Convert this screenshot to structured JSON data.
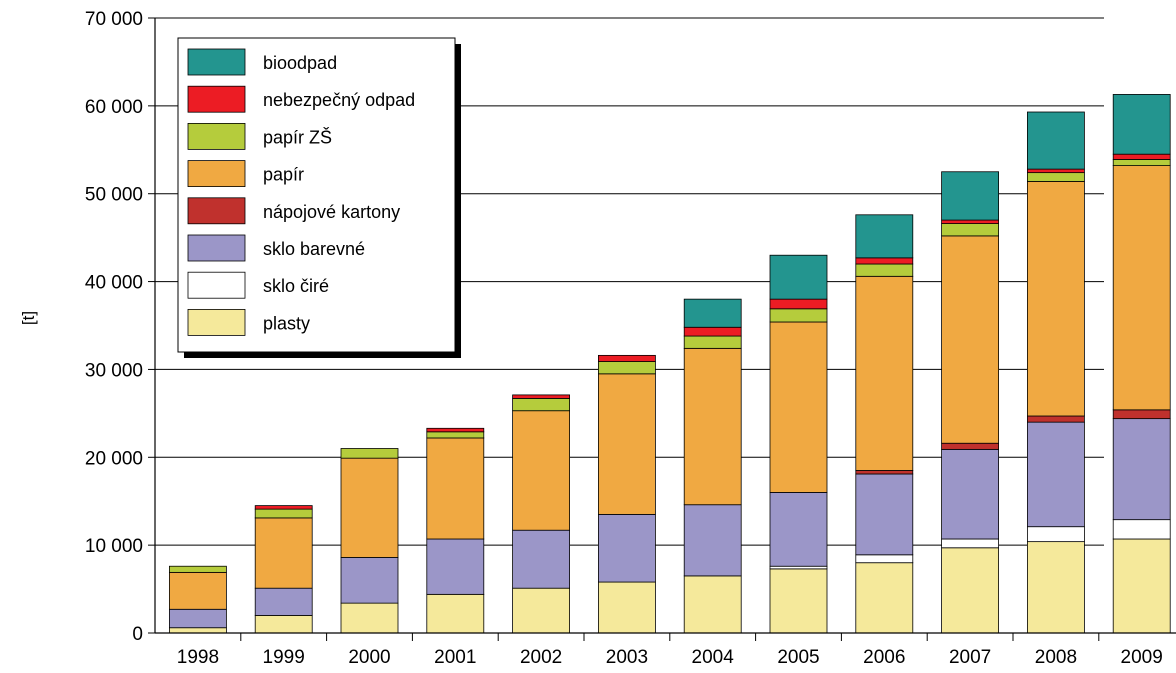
{
  "chart_data": {
    "type": "bar",
    "stacked": true,
    "categories": [
      "1998",
      "1999",
      "2000",
      "2001",
      "2002",
      "2003",
      "2004",
      "2005",
      "2006",
      "2007",
      "2008",
      "2009"
    ],
    "ylabel": "[t]",
    "xlabel": "",
    "ylim": [
      0,
      70000
    ],
    "yticks": [
      0,
      10000,
      20000,
      30000,
      40000,
      50000,
      60000,
      70000
    ],
    "ytick_labels": [
      "0",
      "10 000",
      "20 000",
      "30 000",
      "40 000",
      "50 000",
      "60 000",
      "70 000"
    ],
    "grid": true,
    "legend_position": "top-left",
    "series": [
      {
        "name": "plasty",
        "color": "#f5e99b",
        "values": [
          600,
          2000,
          3400,
          4400,
          5100,
          5800,
          6500,
          7300,
          8000,
          9700,
          10400,
          10700
        ]
      },
      {
        "name": "sklo čiré",
        "color": "#ffffff",
        "values": [
          0,
          0,
          0,
          0,
          0,
          0,
          0,
          300,
          900,
          1000,
          1700,
          2200
        ]
      },
      {
        "name": "sklo barevné",
        "color": "#9b96c8",
        "values": [
          2100,
          3100,
          5200,
          6300,
          6600,
          7700,
          8100,
          8400,
          9200,
          10200,
          11900,
          11500
        ]
      },
      {
        "name": "nápojové kartony",
        "color": "#c0312d",
        "values": [
          0,
          0,
          0,
          0,
          0,
          0,
          0,
          0,
          400,
          700,
          700,
          1000
        ]
      },
      {
        "name": "papír",
        "color": "#f0a942",
        "values": [
          4200,
          8000,
          11300,
          11500,
          13600,
          16000,
          17800,
          19400,
          22100,
          23600,
          26700,
          27800
        ]
      },
      {
        "name": "papír ZŠ",
        "color": "#b5cc3c",
        "values": [
          700,
          1000,
          1100,
          700,
          1400,
          1400,
          1400,
          1500,
          1400,
          1400,
          1000,
          700
        ]
      },
      {
        "name": "nebezpečný odpad",
        "color": "#ec1c24",
        "values": [
          0,
          400,
          0,
          400,
          400,
          700,
          1000,
          1100,
          700,
          400,
          400,
          600
        ]
      },
      {
        "name": "bioodpad",
        "color": "#23958f",
        "values": [
          0,
          0,
          0,
          0,
          0,
          0,
          3200,
          5000,
          4900,
          5500,
          6500,
          6800
        ]
      }
    ],
    "legend_order": [
      "bioodpad",
      "nebezpečný odpad",
      "papír ZŠ",
      "papír",
      "nápojové kartony",
      "sklo barevné",
      "sklo čiré",
      "plasty"
    ]
  }
}
